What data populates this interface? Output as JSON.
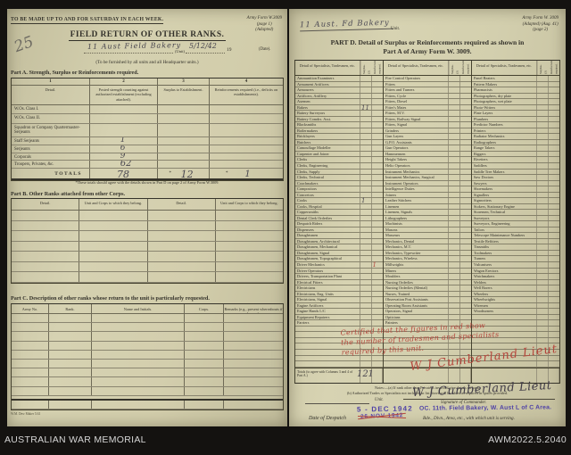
{
  "awm_bar": {
    "left": "AUSTRALIAN WAR MEMORIAL",
    "right": "AWM2022.5.2040"
  },
  "page1": {
    "top_note": "TO BE MADE UP TO AND FOR SATURDAY IN EACH WEEK.",
    "form_ref": [
      "Army Form W.3009",
      "(page 1)",
      "(Adapted)"
    ],
    "pencil_note": "25",
    "title": "FIELD RETURN OF OTHER RANKS.",
    "unit_value": "11 Aust Field Bakery",
    "unit_label": "(Unit)",
    "date_value": "5/12/42",
    "year_prefix": "19",
    "date_label": "(Date).",
    "furnish_note": "(To be furnished by all units and all Headquarter units.)",
    "part_a": {
      "heading": "Part A.   Strength, Surplus or Reinforcements required.",
      "col_nums": [
        "1",
        "2",
        "3",
        "4"
      ],
      "col_heads": [
        "Detail.",
        "Posted strength counting against authorized establishment (excluding attached).",
        "Surplus to Establishment.",
        "Reinforcements required (i.e., deficits on establishments)."
      ],
      "rows": [
        {
          "label": "W.Os. Class I.",
          "posted": ""
        },
        {
          "label": "W.Os. Class II.",
          "posted": ""
        },
        {
          "label": "Squadron or Company Quartermaster-Serjeants",
          "posted": ""
        },
        {
          "label": "Staff Serjeants",
          "posted": "1"
        },
        {
          "label": "Serjeants",
          "posted": "6"
        },
        {
          "label": "Corporals",
          "posted": "9"
        },
        {
          "label": "Troopers, Privates, &c.",
          "posted": "62"
        }
      ],
      "totals": {
        "label": "TOTALS",
        "posted": "78",
        "surplus": "12",
        "reinf": "1"
      },
      "footnote": "*These totals should agree with the details shown in Part D on page 2 of Army Form W.3009."
    },
    "part_b": {
      "heading": "Part B.   Other Ranks attached from other Corps.",
      "col_heads": [
        "Detail.",
        "Unit and Corps to which they belong.",
        "Detail.",
        "Unit and Corps to which they belong."
      ],
      "blank_rows": 7
    },
    "part_c": {
      "heading": "Part C.   Description of other ranks whose return to the unit is particularly requested.",
      "col_heads": [
        "Army No.",
        "Rank.",
        "Name and Initials.",
        "Corps.",
        "Remarks (e.g., present whereabouts if known)."
      ],
      "blank_rows": 10
    },
    "imprint": "W.M. Dew Maker 5/41"
  },
  "page2": {
    "unit_value": "11 Aust. Fd Bakery",
    "unit_label": "Unit.",
    "form_ref": [
      "Army Form W. 3009",
      "(Adapted)  (Aug. 41)",
      "(page 2)"
    ],
    "title_line1": "PART D.   Detail of Surplus or Reinforcements required as shown in",
    "title_line2": "Part A of Army Form W. 3009.",
    "part_d": {
      "detail_head": "Detail of Specialists, Tradesmen, etc.",
      "surplus_head": "Surplus. (3)",
      "reinf_head": "Reinforcements required. (4)",
      "body_rows": 50,
      "groups": [
        [
          "Ammunition Examiners",
          "Armament Artificers",
          "Armourers",
          "Artificers, Artillery",
          "Axemen",
          {
            "t": "Bakers",
            "s": "11"
          },
          "Battery Surveyors",
          "Battery Comdrs. Asst.",
          "Blacksmiths",
          "Boilermakers",
          "Bricklayers",
          "Butchers",
          "Camouflage Modeller",
          "Carpenter and Joiner",
          "Clerks",
          "Clerks, Engineering",
          "Clerks, Supply",
          "Clerks, Technical",
          "Coachmakers",
          "Compositors",
          "Concretors",
          {
            "t": "Cooks",
            "s": "1"
          },
          "Cooks, Hospital",
          "Coppersmiths",
          "Dental Clerk Orderlies",
          "Despatch Riders",
          "Dispensers",
          "Draughtsmen",
          "Draughtsmen, Architectural",
          "Draughtsmen, Mechanical",
          "Draughtsmen, Signal",
          "Draughtsmen, Topographical",
          {
            "t": "Driver Mechanics",
            "r": "1",
            "rc": true
          },
          "Driver Operators",
          "Drivers, Transportation Plant",
          "Electrical Fitters",
          "Electricians",
          "Electricians, Eng. Units",
          "Electricians, Signal",
          "Engine Artificers",
          "Engine Hands L/C",
          "Equipment Repairers",
          "Farriers"
        ],
        [
          "Fire Control Operators",
          "Fitters",
          "Fitters and Turners",
          "Fitters, Cycle",
          "Fitters, Diesel",
          "Fitter's Mates",
          "Fitters, M.V.",
          "Fitters, Railway Signal",
          "Fitters, Signal",
          "Grinders",
          "Gun Layers",
          "G.P.O. Assistants",
          "Gun Operators",
          "Hammermen",
          "Height Takers",
          "Helio Operators",
          "Instrument Mechanics",
          "Instrument Mechanics, Surgical",
          "Instrument Operators",
          "Intelligence Duties",
          "Joiners",
          "Leather Stitchers",
          "Linemen",
          "Linemen, Signals",
          "Lithographers",
          "Machinists",
          "Masons",
          "Masseurs",
          "Mechanics, Dental",
          "Mechanics, M.T.",
          "Mechanics, Typewriter",
          "Mechanics, Wireless",
          "Millwrights",
          "Miners",
          "Moulders",
          "Nursing Orderlies",
          "Nursing Orderlies (Mental)",
          "Nurses, Trained",
          "Observation Post Assistants",
          "Operating Room Assistants",
          "Operators, Signal",
          "Opticians",
          "Painters"
        ],
        [
          "Panel Beaters",
          "Pattern Makers",
          "Pharmacists",
          "Photographers, dry plate",
          "Photographers, wet plate",
          "Photo-Writers",
          "Plate Layers",
          "Plumbers",
          "Predictor Numbers",
          "Printers",
          "Radiator Mechanics",
          "Radiographers",
          "Range Takers",
          "Riggers",
          "Rivetters",
          "Saddlers",
          "Saddle Tree Makers",
          "Saw Doctors",
          "Sawyers",
          "Shoemakers",
          "Signallers",
          "Signwriters",
          "Stokers, Stationary Engine",
          "Storemen, Technical",
          "Surveyors",
          "Surveyors, Engineering",
          "Tailors",
          "Telescope Maintenance Numbers",
          "Textile Refitters",
          "Tinsmiths",
          "Toolmakers",
          "Turners",
          "Vulcanisers",
          "Wagon Erectors",
          "Watchmakers",
          "Welders",
          "Well Borers",
          "Wheelers",
          "Wheelwrights",
          "Wiremen",
          "Woodturners"
        ]
      ],
      "totals_label": "Totals (to agree with Columns 3 and 4 of Part A.)",
      "totals_surplus": "12",
      "totals_reinf": "1"
    },
    "red_note_lines": [
      "Certified that the figures in red show",
      "the number of tradesmen and specialists",
      "required by this unit."
    ],
    "red_signature": "W J Cumberland Lieut",
    "notes_line1": "Notes:—(a) If rank other than Private is involved give details on back.",
    "notes_line2": "(b) Authorized Trades or Specialists not included in list above will be added as required in spaces provided.",
    "commander_signature": "W J Cumberland Lieut",
    "signature_label": "Signature of Commander.",
    "unit_small_label": "Unit.",
    "date_stamp": "5 - DEC 1942",
    "despatch_label": "Date of Despatch",
    "despatch_stamp": "26 NOV 1942",
    "oc_stamp": "OC. 11th. Field Bakery, W. Aust L of C Area.",
    "serving_label": "Bde., Divn., Area, etc., with which unit is serving."
  }
}
